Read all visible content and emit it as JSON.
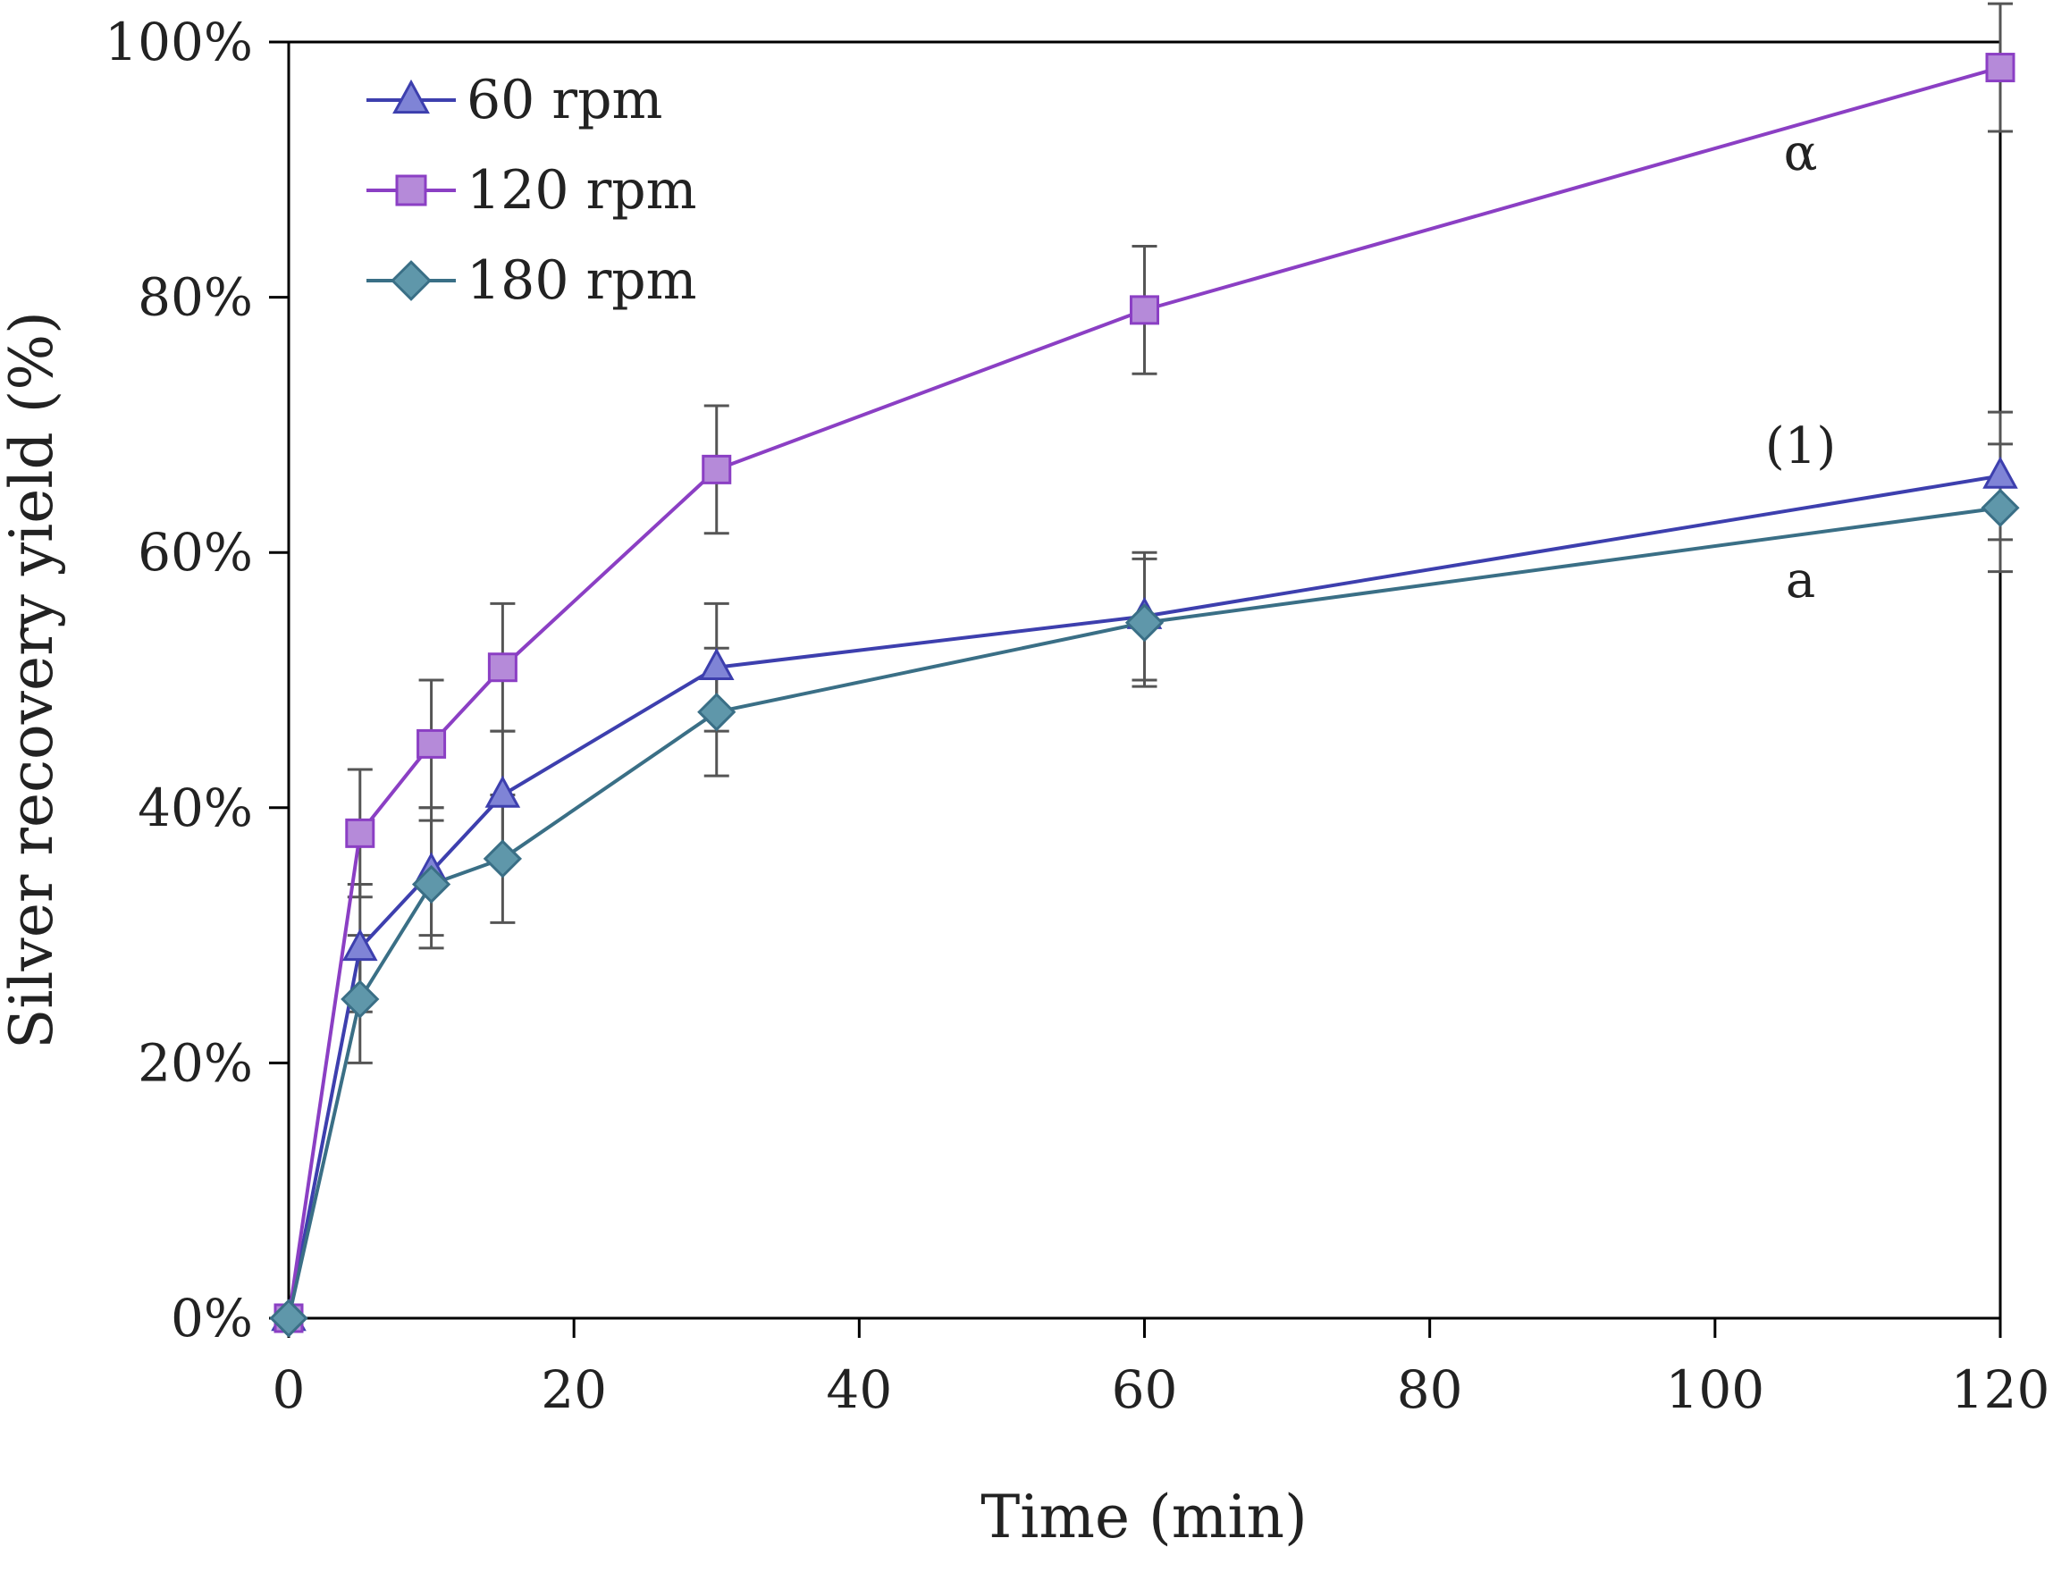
{
  "chart_data": {
    "type": "line",
    "title": "",
    "xlabel": "Time (min)",
    "ylabel": "Silver recovery yield (%)",
    "xlim": [
      0,
      120
    ],
    "ylim": [
      0,
      100
    ],
    "x_ticks": [
      0,
      20,
      40,
      60,
      80,
      100,
      120
    ],
    "y_ticks": [
      0,
      20,
      40,
      60,
      80,
      100
    ],
    "y_tick_format": "percent",
    "grid": false,
    "legend_position": "top-left",
    "x": [
      0,
      5,
      10,
      15,
      30,
      60,
      120
    ],
    "series": [
      {
        "name": "60 rpm",
        "marker": "triangle",
        "color": "#3d3fae",
        "marker_color": "#7f84d6",
        "values": [
          0,
          29,
          35,
          41,
          51,
          55,
          66
        ],
        "error": [
          0,
          5,
          5,
          5,
          5,
          5,
          5
        ]
      },
      {
        "name": "120 rpm",
        "marker": "square",
        "color": "#8b3fc4",
        "marker_color": "#b58ad9",
        "values": [
          0,
          38,
          45,
          51,
          66.5,
          79,
          98
        ],
        "error": [
          0,
          5,
          5,
          5,
          5,
          5,
          5
        ]
      },
      {
        "name": "180 rpm",
        "marker": "diamond",
        "color": "#3a6f86",
        "marker_color": "#5f97aa",
        "values": [
          0,
          25,
          34,
          36,
          47.5,
          54.5,
          63.5
        ],
        "error": [
          0,
          5,
          5,
          5,
          5,
          5,
          5
        ]
      }
    ],
    "annotations": [
      {
        "text": "α",
        "x": 106,
        "y": 90
      },
      {
        "text": "(1)",
        "x": 106,
        "y": 67
      },
      {
        "text": "a",
        "x": 106,
        "y": 56.5
      }
    ],
    "error_bar_color": "#555555"
  }
}
